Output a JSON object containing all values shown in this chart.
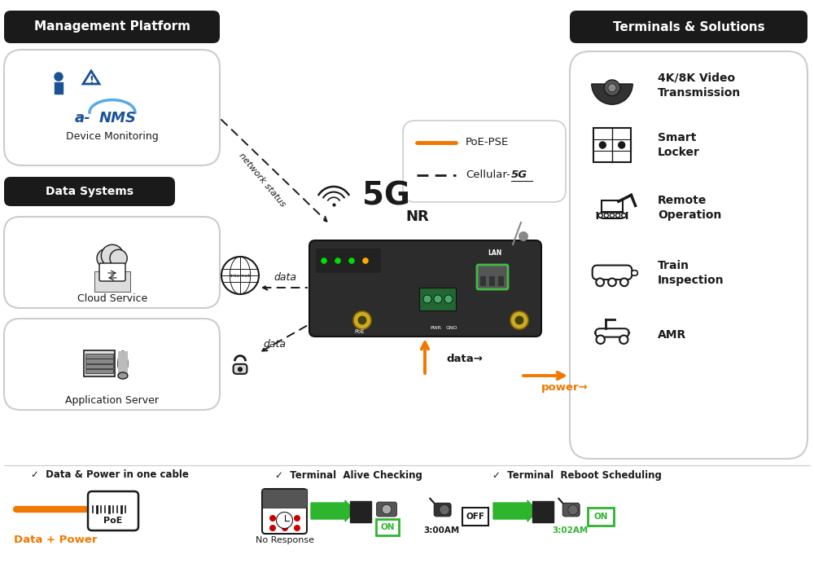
{
  "bg_color": "#ffffff",
  "title_left": "Management Platform",
  "title_right": "Terminals & Solutions",
  "data_systems_label": "Data Systems",
  "device_monitoring_label": "Device Monitoring",
  "cloud_service_label": "Cloud Service",
  "app_server_label": "Application Server",
  "terminals": [
    "4K/8K Video\nTransmission",
    "Smart\nLocker",
    "Remote\nOperation",
    "Train\nInspection",
    "AMR"
  ],
  "legend_poe": "PoE-PSE",
  "legend_cellular": "Cellular-",
  "legend_5g": "5G",
  "network_status_label": "network status",
  "data_label": "data",
  "data_arrow_label": "data→",
  "power_arrow_label": "power→",
  "footer_check1": "✓  Data & Power in one cable",
  "footer_check2": "✓  Terminal  Alive Checking",
  "footer_check3": "✓  Terminal  Reboot Scheduling",
  "data_power_label": "Data + Power",
  "no_response_label": "No Response",
  "on_label": "ON",
  "off_label": "OFF",
  "time1_label": "3:00AM",
  "time2_label": "3:02AM",
  "orange_color": "#F07800",
  "black_color": "#1a1a1a",
  "green_color": "#2db52d",
  "gray_color": "#888888",
  "light_gray": "#f5f5f5",
  "border_gray": "#cccccc"
}
